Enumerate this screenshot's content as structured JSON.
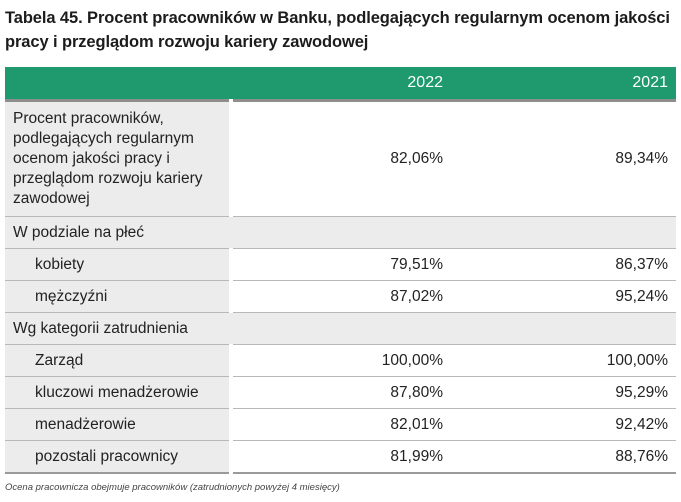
{
  "title": "Tabela 45. Procent pracowników w Banku, podlegających regularnym ocenom jakości pracy i przeglądom rozwoju kariery zawodowej",
  "columns": [
    "2022",
    "2021"
  ],
  "main_row": {
    "label": "Procent pracowników, podlegających regularnym ocenom jakości pracy i przeglądom rozwoju kariery zawodowej",
    "values": [
      "82,06%",
      "89,34%"
    ]
  },
  "sections": [
    {
      "label": "W podziale na płeć",
      "rows": [
        {
          "label": "kobiety",
          "values": [
            "79,51%",
            "86,37%"
          ]
        },
        {
          "label": "mężczyźni",
          "values": [
            "87,02%",
            "95,24%"
          ]
        }
      ]
    },
    {
      "label": "Wg kategorii zatrudnienia",
      "rows": [
        {
          "label": "Zarząd",
          "values": [
            "100,00%",
            "100,00%"
          ]
        },
        {
          "label": "kluczowi menadżerowie",
          "values": [
            "87,80%",
            "95,29%"
          ]
        },
        {
          "label": "menadżerowie",
          "values": [
            "82,01%",
            "92,42%"
          ]
        },
        {
          "label": "pozostali pracownicy",
          "values": [
            "81,99%",
            "88,76%"
          ]
        }
      ]
    }
  ],
  "footnote": "Ocena pracownicza obejmuje pracowników (zatrudnionych powyżej 4 miesięcy)"
}
